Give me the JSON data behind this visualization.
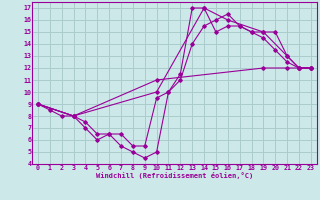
{
  "xlabel": "Windchill (Refroidissement éolien,°C)",
  "background_color": "#cde8e8",
  "grid_color": "#aacccc",
  "line_color": "#990099",
  "xlim": [
    -0.5,
    23.5
  ],
  "ylim": [
    4,
    17.5
  ],
  "xticks": [
    0,
    1,
    2,
    3,
    4,
    5,
    6,
    7,
    8,
    9,
    10,
    11,
    12,
    13,
    14,
    15,
    16,
    17,
    18,
    19,
    20,
    21,
    22,
    23
  ],
  "yticks": [
    4,
    5,
    6,
    7,
    8,
    9,
    10,
    11,
    12,
    13,
    14,
    15,
    16,
    17
  ],
  "series": [
    {
      "x": [
        0,
        1,
        2,
        3,
        4,
        5,
        6,
        7,
        8,
        9,
        10,
        11,
        12,
        13,
        14,
        15,
        16,
        17,
        18,
        19,
        20,
        21,
        22,
        23
      ],
      "y": [
        9,
        8.5,
        8,
        8,
        7.5,
        6.5,
        6.5,
        6.5,
        5.5,
        5.5,
        9.5,
        10,
        11,
        14,
        15.5,
        16,
        16.5,
        15.5,
        15,
        14.5,
        13.5,
        12.5,
        12,
        12
      ]
    },
    {
      "x": [
        0,
        3,
        4,
        5,
        6,
        7,
        8,
        9,
        10,
        11,
        12,
        13,
        14,
        15,
        16,
        17,
        18,
        19,
        20,
        21,
        22,
        23
      ],
      "y": [
        9,
        8,
        7,
        6,
        6.5,
        5.5,
        5,
        4.5,
        5,
        10,
        11.5,
        17,
        17,
        15,
        15.5,
        15.5,
        15,
        15,
        15,
        13,
        12,
        12
      ]
    },
    {
      "x": [
        0,
        3,
        10,
        14,
        16,
        19,
        21,
        22,
        23
      ],
      "y": [
        9,
        8,
        10,
        17,
        16,
        15,
        13,
        12,
        12
      ]
    },
    {
      "x": [
        0,
        3,
        10,
        19,
        21,
        22,
        23
      ],
      "y": [
        9,
        8,
        11,
        12,
        12,
        12,
        12
      ]
    }
  ]
}
